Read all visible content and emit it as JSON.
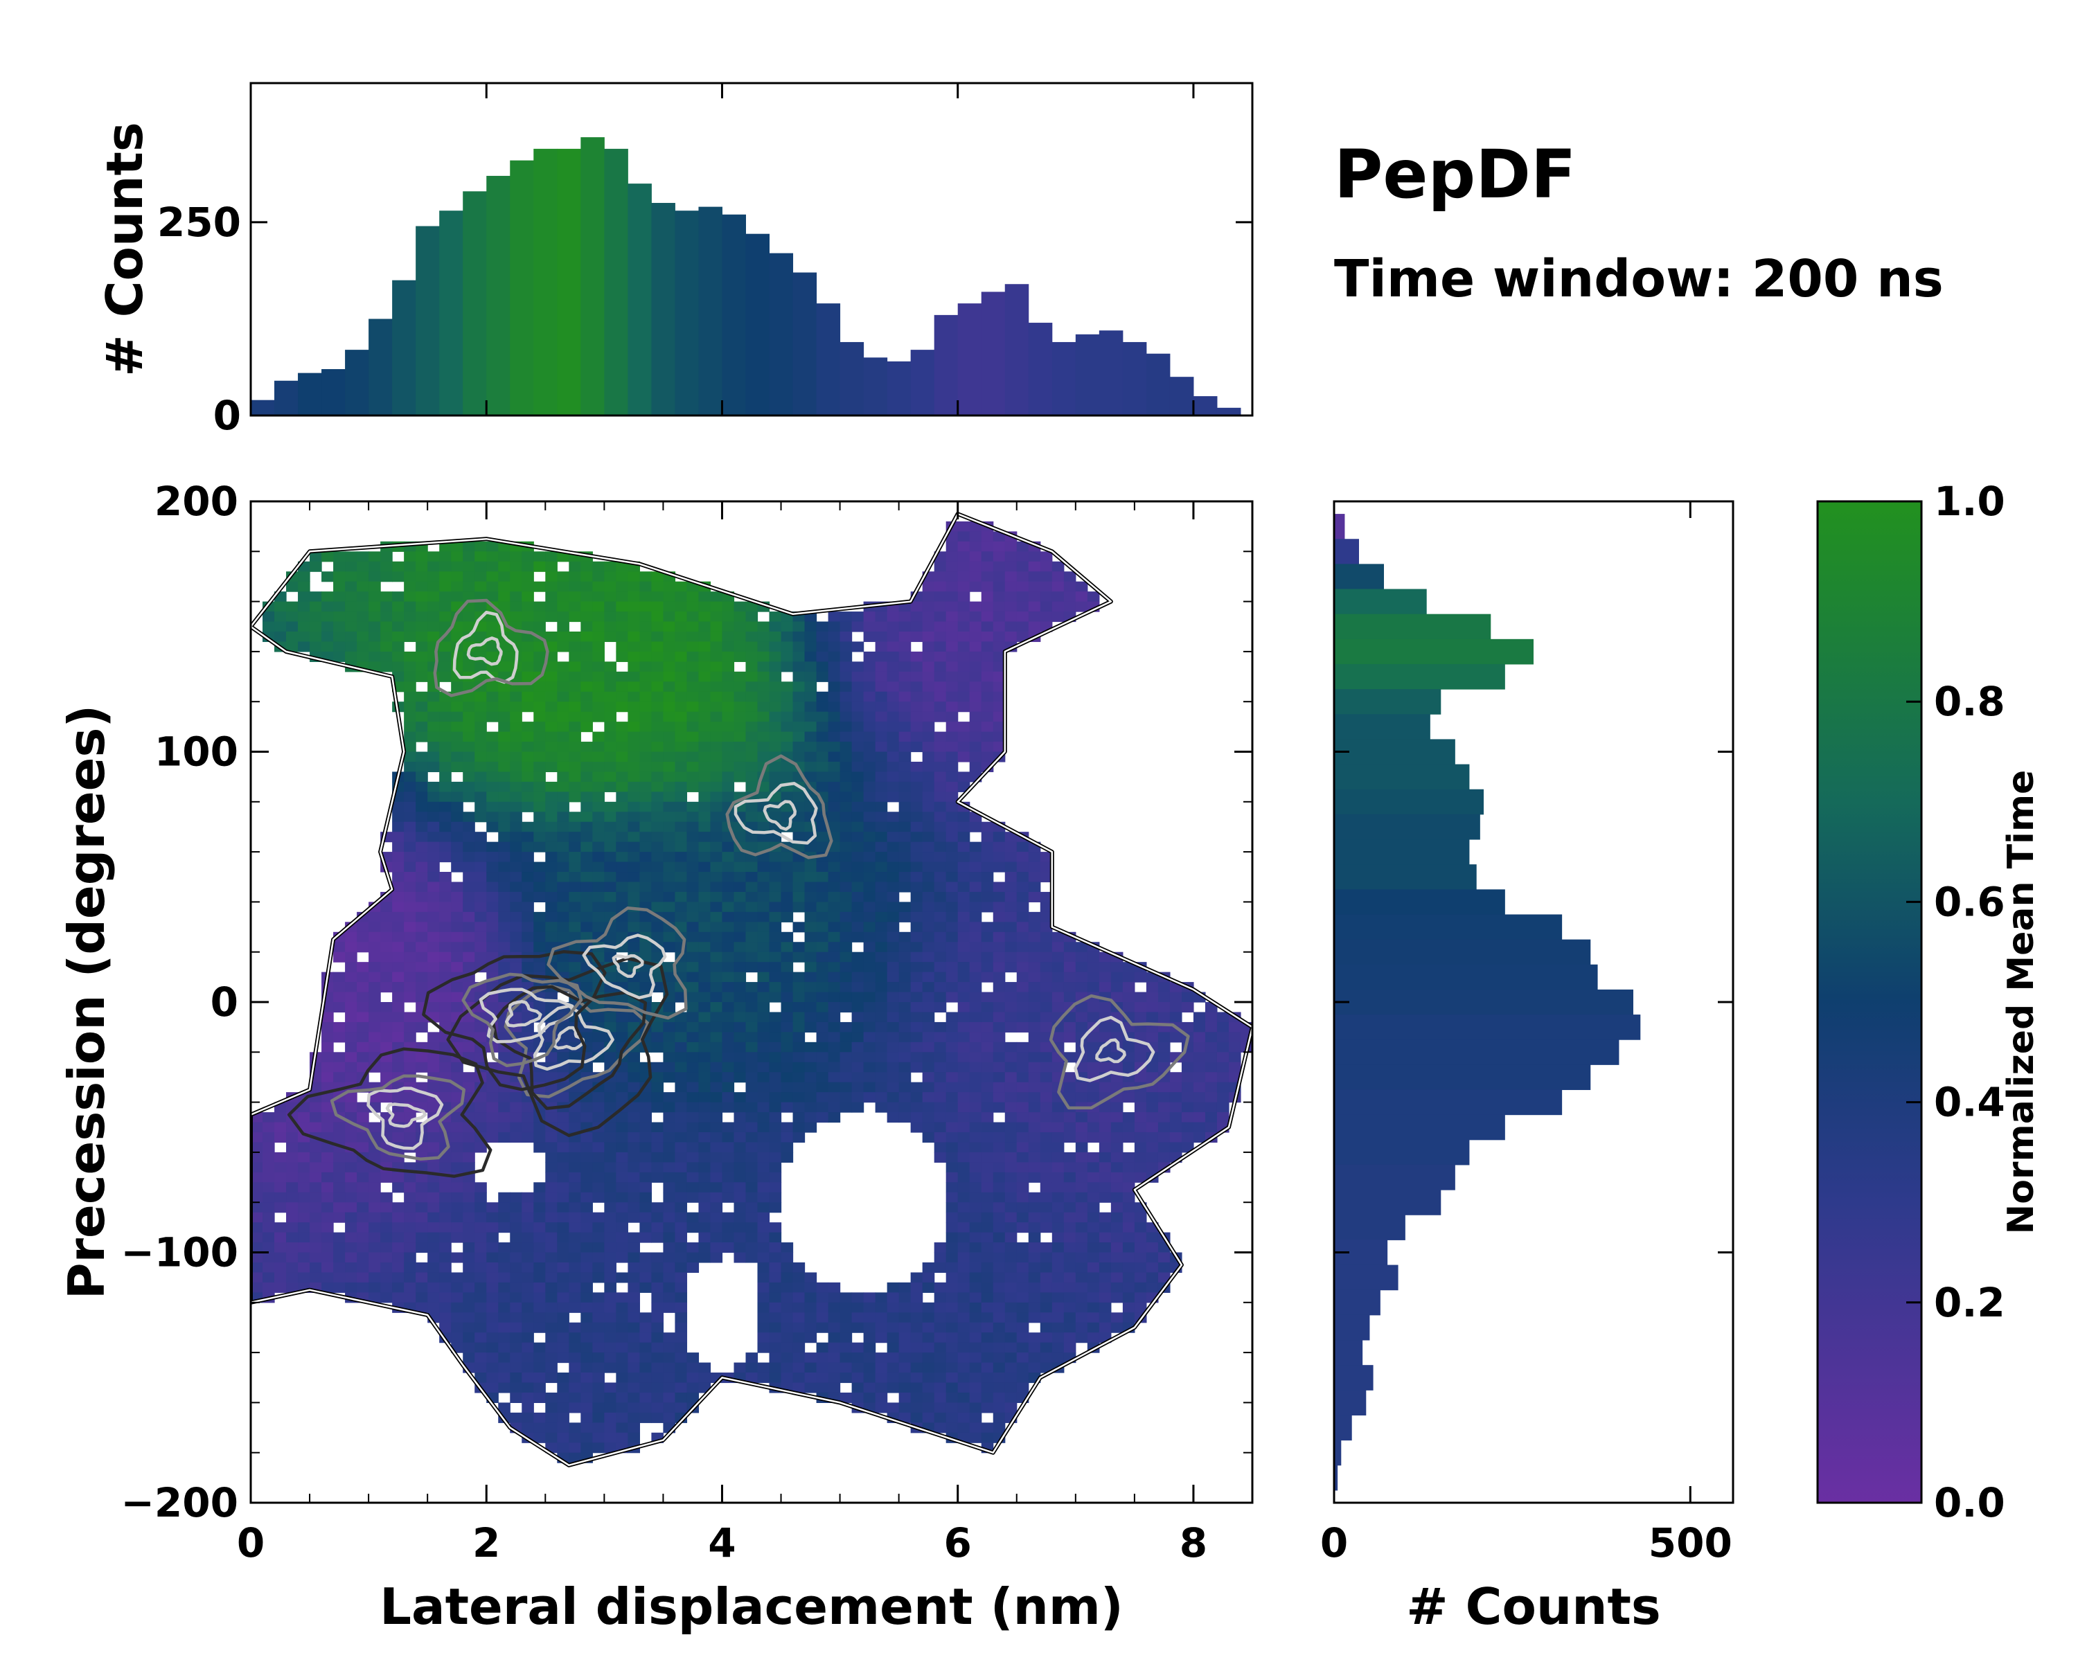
{
  "title": "PepDF",
  "subtitle": "Time window: 200 ns",
  "colors": {
    "cmap_0": "#6a2fa3",
    "cmap_03": "#2e3a8c",
    "cmap_05": "#0f3f6f",
    "cmap_07": "#156a5a",
    "cmap_1": "#22911f"
  },
  "chart_data": [
    {
      "id": "main-2d-histogram",
      "type": "heatmap",
      "xlabel": "Lateral displacement (nm)",
      "ylabel": "Precession (degrees)",
      "xlim": [
        0,
        8.5
      ],
      "ylim": [
        -200,
        200
      ],
      "xticks": [
        0,
        2,
        4,
        6,
        8
      ],
      "xtick_labels": [
        "0",
        "2",
        "4",
        "6",
        "8"
      ],
      "yticks": [
        -200,
        -100,
        0,
        100,
        200
      ],
      "ytick_labels": [
        "−200",
        "−100",
        "0",
        "100",
        "200"
      ],
      "color_variable": "Normalized Mean Time",
      "regions": [
        {
          "name": "upper-left-green",
          "x_center": 3.0,
          "y_center": 130,
          "mean_time": 0.95
        },
        {
          "name": "upper-right-purple",
          "x_center": 6.5,
          "y_center": 150,
          "mean_time": 0.15
        },
        {
          "name": "center-left-purple",
          "x_center": 1.0,
          "y_center": 10,
          "mean_time": 0.1
        },
        {
          "name": "center-mix",
          "x_center": 3.5,
          "y_center": 30,
          "mean_time": 0.55
        },
        {
          "name": "right-purple",
          "x_center": 7.5,
          "y_center": -10,
          "mean_time": 0.25
        },
        {
          "name": "lower-blue",
          "x_center": 4.5,
          "y_center": -120,
          "mean_time": 0.35
        }
      ],
      "density_peaks": [
        {
          "x": 2.7,
          "y": -15,
          "level": "highest"
        },
        {
          "x": 2.3,
          "y": -5,
          "level": "high"
        },
        {
          "x": 1.3,
          "y": -45,
          "level": "high"
        },
        {
          "x": 3.2,
          "y": 15,
          "level": "medium"
        },
        {
          "x": 4.5,
          "y": 75,
          "level": "medium"
        },
        {
          "x": 2.0,
          "y": 140,
          "level": "medium"
        },
        {
          "x": 7.3,
          "y": -20,
          "level": "medium"
        }
      ]
    },
    {
      "id": "top-marginal-histogram",
      "type": "bar",
      "ylabel": "# Counts",
      "ylim": [
        0,
        430
      ],
      "yticks": [
        0,
        250
      ],
      "ytick_labels": [
        "0",
        "250"
      ],
      "x": [
        0.1,
        0.3,
        0.5,
        0.7,
        0.9,
        1.1,
        1.3,
        1.5,
        1.7,
        1.9,
        2.1,
        2.3,
        2.5,
        2.7,
        2.9,
        3.1,
        3.3,
        3.5,
        3.7,
        3.9,
        4.1,
        4.3,
        4.5,
        4.7,
        4.9,
        5.1,
        5.3,
        5.5,
        5.7,
        5.9,
        6.1,
        6.3,
        6.5,
        6.7,
        6.9,
        7.1,
        7.3,
        7.5,
        7.7,
        7.9,
        8.1,
        8.3
      ],
      "values": [
        20,
        45,
        55,
        60,
        85,
        125,
        175,
        245,
        265,
        290,
        310,
        330,
        345,
        345,
        360,
        345,
        300,
        275,
        265,
        270,
        260,
        235,
        210,
        185,
        145,
        95,
        75,
        70,
        85,
        130,
        145,
        160,
        170,
        120,
        95,
        105,
        110,
        95,
        80,
        50,
        25,
        10
      ],
      "mean_time": [
        0.42,
        0.45,
        0.5,
        0.5,
        0.52,
        0.55,
        0.6,
        0.65,
        0.7,
        0.8,
        0.85,
        0.92,
        0.95,
        0.98,
        0.9,
        0.8,
        0.7,
        0.62,
        0.58,
        0.55,
        0.52,
        0.5,
        0.48,
        0.45,
        0.4,
        0.38,
        0.36,
        0.33,
        0.3,
        0.25,
        0.22,
        0.22,
        0.25,
        0.28,
        0.3,
        0.32,
        0.32,
        0.33,
        0.35,
        0.35,
        0.33,
        0.33
      ]
    },
    {
      "id": "right-marginal-histogram",
      "type": "bar",
      "orientation": "horizontal",
      "xlabel": "# Counts",
      "xlim": [
        0,
        560
      ],
      "xticks": [
        0,
        500
      ],
      "xtick_labels": [
        "0",
        "500"
      ],
      "y": [
        190,
        180,
        170,
        160,
        150,
        140,
        130,
        120,
        110,
        100,
        90,
        80,
        70,
        60,
        50,
        40,
        30,
        20,
        10,
        0,
        -10,
        -20,
        -30,
        -40,
        -50,
        -60,
        -70,
        -80,
        -90,
        -100,
        -110,
        -120,
        -130,
        -140,
        -150,
        -160,
        -170,
        -180,
        -190
      ],
      "values": [
        15,
        35,
        70,
        130,
        220,
        280,
        240,
        150,
        135,
        170,
        190,
        210,
        205,
        190,
        200,
        240,
        320,
        360,
        370,
        420,
        430,
        400,
        360,
        320,
        240,
        190,
        170,
        150,
        100,
        75,
        90,
        65,
        50,
        40,
        55,
        45,
        25,
        10,
        5
      ],
      "mean_time": [
        0.1,
        0.3,
        0.55,
        0.7,
        0.8,
        0.82,
        0.75,
        0.65,
        0.6,
        0.6,
        0.6,
        0.58,
        0.55,
        0.55,
        0.55,
        0.5,
        0.48,
        0.47,
        0.46,
        0.45,
        0.42,
        0.42,
        0.42,
        0.4,
        0.4,
        0.4,
        0.38,
        0.38,
        0.38,
        0.36,
        0.36,
        0.36,
        0.36,
        0.36,
        0.36,
        0.36,
        0.36,
        0.36,
        0.36
      ]
    },
    {
      "id": "colorbar",
      "type": "colorbar",
      "label": "Normalized Mean Time",
      "range": [
        0,
        1
      ],
      "ticks": [
        0,
        0.2,
        0.4,
        0.6,
        0.8,
        1.0
      ],
      "tick_labels": [
        "0.0",
        "0.2",
        "0.4",
        "0.6",
        "0.8",
        "1.0"
      ]
    }
  ]
}
